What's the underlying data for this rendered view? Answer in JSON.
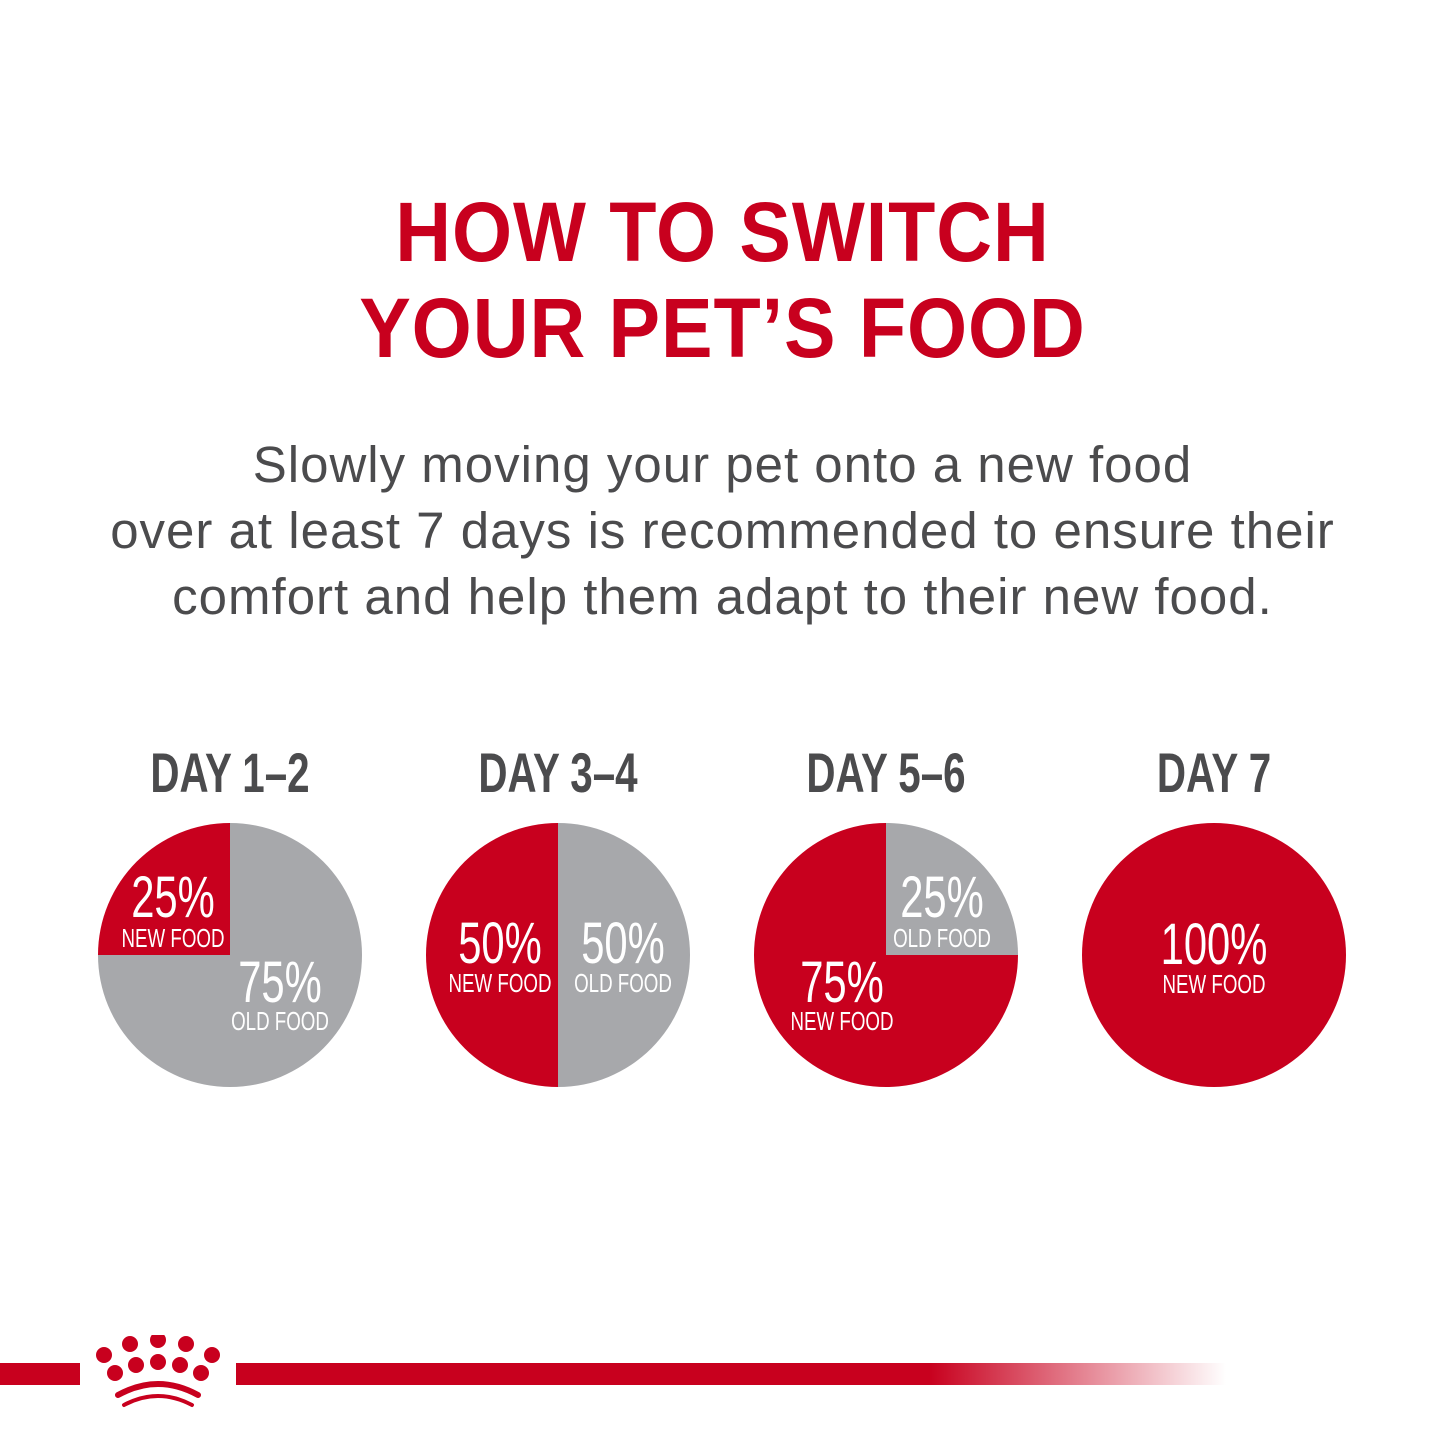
{
  "header": {
    "title_lines": [
      "HOW TO SWITCH",
      "YOUR PET’S FOOD"
    ],
    "subtitle_lines": [
      "Slowly moving your pet onto a new food",
      "over at least 7 days is recommended to ensure their",
      "comfort and help them adapt to their new food."
    ]
  },
  "colors": {
    "new_food": "#c8001e",
    "old_food": "#a7a8ab",
    "text": "#4b4b4d"
  },
  "chart_data": {
    "type": "pie",
    "charts": [
      {
        "title": "DAY 1–2",
        "slices": [
          {
            "label": "NEW FOOD",
            "value": 25,
            "text": "25%"
          },
          {
            "label": "OLD FOOD",
            "value": 75,
            "text": "75%"
          }
        ]
      },
      {
        "title": "DAY 3–4",
        "slices": [
          {
            "label": "NEW FOOD",
            "value": 50,
            "text": "50%"
          },
          {
            "label": "OLD FOOD",
            "value": 50,
            "text": "50%"
          }
        ]
      },
      {
        "title": "DAY 5–6",
        "slices": [
          {
            "label": "NEW FOOD",
            "value": 75,
            "text": "75%"
          },
          {
            "label": "OLD FOOD",
            "value": 25,
            "text": "25%"
          }
        ]
      },
      {
        "title": "DAY 7",
        "slices": [
          {
            "label": "NEW FOOD",
            "value": 100,
            "text": "100%"
          }
        ]
      }
    ]
  },
  "logo": {
    "name": "crown-logo"
  }
}
